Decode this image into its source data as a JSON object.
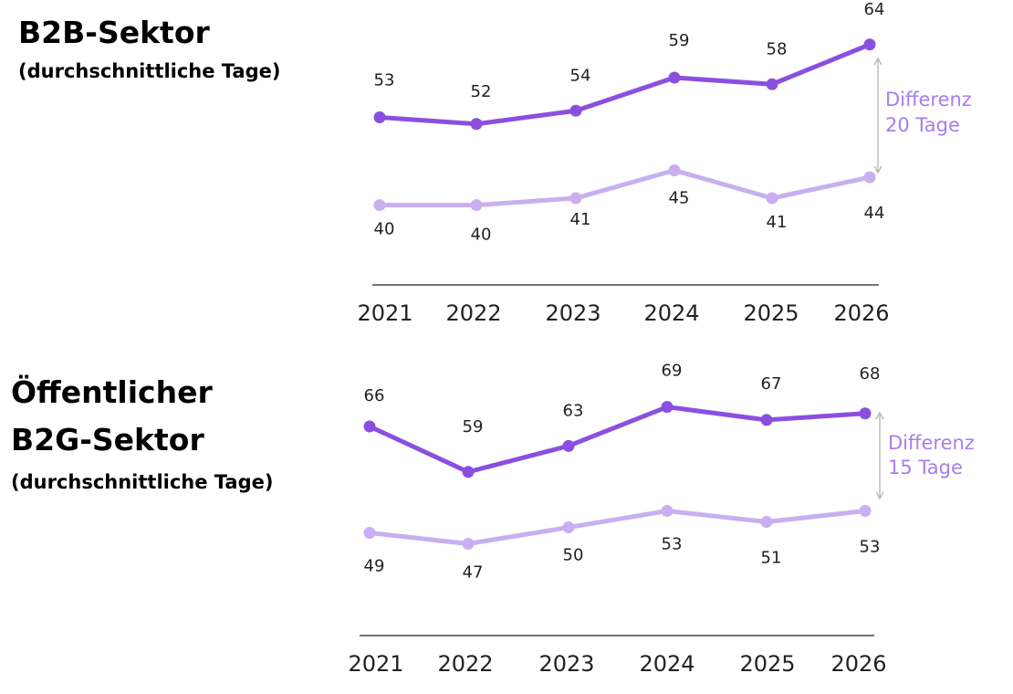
{
  "colors": {
    "series_dark": "#8b4fe0",
    "series_light": "#c9aff0",
    "difference_text": "#a67ef0",
    "difference_arrow": "#b5b5b5",
    "axis": "#222222",
    "text": "#222222"
  },
  "panels": [
    {
      "title_line1": "B2B-Sektor",
      "title_line2": "",
      "subtitle": "(durchschnittliche Tage)",
      "difference_line1": "Differenz",
      "difference_line2": "20 Tage"
    },
    {
      "title_line1": "Öffentlicher",
      "title_line2": "B2G-Sektor",
      "subtitle": "(durchschnittliche Tage)",
      "difference_line1": "Differenz",
      "difference_line2": "15 Tage"
    }
  ],
  "chart_data": [
    {
      "type": "line",
      "title": "B2B-Sektor",
      "subtitle": "(durchschnittliche Tage)",
      "x": [
        "2021",
        "2022",
        "2023",
        "2024",
        "2025",
        "2026"
      ],
      "series": [
        {
          "values": [
            53,
            52,
            54,
            59,
            58,
            64
          ],
          "color": "#8b4fe0"
        },
        {
          "values": [
            40,
            40,
            41,
            45,
            41,
            44
          ],
          "color": "#c9aff0"
        }
      ],
      "annotation": "Differenz 20 Tage",
      "grid": false,
      "legend": "none"
    },
    {
      "type": "line",
      "title": "Öffentlicher B2G-Sektor",
      "subtitle": "(durchschnittliche Tage)",
      "x": [
        "2021",
        "2022",
        "2023",
        "2024",
        "2025",
        "2026"
      ],
      "series": [
        {
          "values": [
            66,
            59,
            63,
            69,
            67,
            68
          ],
          "color": "#8b4fe0"
        },
        {
          "values": [
            49,
            47,
            50,
            53,
            51,
            53
          ],
          "color": "#c9aff0"
        }
      ],
      "annotation": "Differenz 15 Tage",
      "grid": false,
      "legend": "none"
    }
  ]
}
